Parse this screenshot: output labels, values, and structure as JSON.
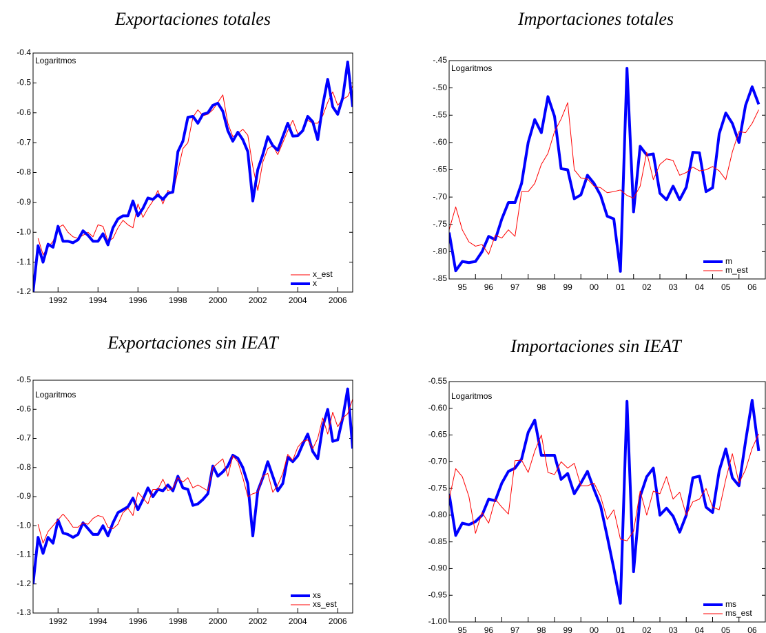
{
  "chart_data": [
    {
      "type": "line",
      "title": "Exportaciones totales",
      "annotation": "Logaritmos",
      "legend": "lower right",
      "x": [
        1990.75,
        1991,
        1991.25,
        1991.5,
        1991.75,
        1992,
        1992.25,
        1992.5,
        1992.75,
        1993,
        1993.25,
        1993.5,
        1993.75,
        1994,
        1994.25,
        1994.5,
        1994.75,
        1995,
        1995.25,
        1995.5,
        1995.75,
        1996,
        1996.25,
        1996.5,
        1996.75,
        1997,
        1997.25,
        1997.5,
        1997.75,
        1998,
        1998.25,
        1998.5,
        1998.75,
        1999,
        1999.25,
        1999.5,
        1999.75,
        2000,
        2000.25,
        2000.5,
        2000.75,
        2001,
        2001.25,
        2001.5,
        2001.75,
        2002,
        2002.25,
        2002.5,
        2002.75,
        2003,
        2003.25,
        2003.5,
        2003.75,
        2004,
        2004.25,
        2004.5,
        2004.75,
        2005,
        2005.25,
        2005.5,
        2005.75,
        2006,
        2006.25,
        2006.5,
        2006.75
      ],
      "series": [
        {
          "name": "x_est",
          "color": "#ff0000",
          "width": 1,
          "values": [
            null,
            -1.02,
            -1.075,
            -1.05,
            -1.03,
            -0.985,
            -0.975,
            -1.0,
            -1.015,
            -1.02,
            -1.01,
            -1.0,
            -1.015,
            -0.975,
            -0.98,
            -1.03,
            -1.02,
            -0.985,
            -0.96,
            -0.975,
            -0.985,
            -0.905,
            -0.95,
            -0.92,
            -0.895,
            -0.86,
            -0.905,
            -0.86,
            -0.87,
            -0.795,
            -0.72,
            -0.7,
            -0.615,
            -0.59,
            -0.61,
            -0.605,
            -0.59,
            -0.565,
            -0.54,
            -0.635,
            -0.68,
            -0.67,
            -0.655,
            -0.675,
            -0.78,
            -0.86,
            -0.765,
            -0.72,
            -0.71,
            -0.74,
            -0.7,
            -0.66,
            -0.625,
            -0.67,
            -0.66,
            -0.625,
            -0.635,
            -0.635,
            -0.61,
            -0.565,
            -0.53,
            -0.575,
            -0.555,
            -0.545,
            -0.51
          ]
        },
        {
          "name": "x",
          "color": "#0000ff",
          "width": 4,
          "values": [
            -1.2,
            -1.045,
            -1.1,
            -1.04,
            -1.05,
            -0.98,
            -1.03,
            -1.03,
            -1.035,
            -1.025,
            -0.995,
            -1.01,
            -1.03,
            -1.03,
            -1.005,
            -1.042,
            -0.985,
            -0.955,
            -0.945,
            -0.945,
            -0.895,
            -0.945,
            -0.92,
            -0.885,
            -0.89,
            -0.875,
            -0.89,
            -0.87,
            -0.865,
            -0.73,
            -0.695,
            -0.615,
            -0.612,
            -0.635,
            -0.605,
            -0.6,
            -0.575,
            -0.568,
            -0.595,
            -0.66,
            -0.695,
            -0.665,
            -0.69,
            -0.73,
            -0.895,
            -0.79,
            -0.74,
            -0.68,
            -0.71,
            -0.725,
            -0.68,
            -0.635,
            -0.678,
            -0.677,
            -0.66,
            -0.612,
            -0.63,
            -0.69,
            -0.575,
            -0.488,
            -0.58,
            -0.605,
            -0.55,
            -0.43,
            -0.58
          ]
        }
      ],
      "xlim": [
        1990.75,
        2006.75
      ],
      "xticks": [
        1992,
        1994,
        1996,
        1998,
        2000,
        2002,
        2004,
        2006
      ],
      "ylim": [
        -1.2,
        -0.4
      ],
      "yticks": [
        -1.2,
        -1.1,
        {
          "value": -1.0,
          "label": "-1.0"
        },
        -0.9,
        -0.8,
        -0.7,
        -0.6,
        -0.5,
        -0.4
      ]
    },
    {
      "type": "line",
      "title": "Importaciones totales",
      "annotation": "Logaritmos",
      "legend": "lower right",
      "x": [
        1995,
        1995.25,
        1995.5,
        1995.75,
        1996,
        1996.25,
        1996.5,
        1996.75,
        1997,
        1997.25,
        1997.5,
        1997.75,
        1998,
        1998.25,
        1998.5,
        1998.75,
        1999,
        1999.25,
        1999.5,
        1999.75,
        2000,
        2000.25,
        2000.5,
        2000.75,
        2001,
        2001.25,
        2001.5,
        2001.75,
        2002,
        2002.25,
        2002.5,
        2002.75,
        2003,
        2003.25,
        2003.5,
        2003.75,
        2004,
        2004.25,
        2004.5,
        2004.75,
        2005,
        2005.25,
        2005.5,
        2005.75,
        2006,
        2006.25,
        2006.5,
        2006.75
      ],
      "series": [
        {
          "name": "m",
          "color": "#0000ff",
          "width": 4,
          "values": [
            -0.765,
            -0.835,
            -0.818,
            -0.82,
            -0.818,
            -0.8,
            -0.772,
            -0.778,
            -0.74,
            -0.71,
            -0.71,
            -0.675,
            -0.6,
            -0.558,
            -0.582,
            -0.516,
            -0.552,
            -0.648,
            -0.65,
            -0.703,
            -0.696,
            -0.66,
            -0.675,
            -0.697,
            -0.735,
            -0.74,
            -0.836,
            -0.464,
            -0.727,
            -0.607,
            -0.623,
            -0.621,
            -0.693,
            -0.705,
            -0.68,
            -0.705,
            -0.682,
            -0.618,
            -0.619,
            -0.69,
            -0.683,
            -0.584,
            -0.546,
            -0.565,
            -0.6,
            -0.532,
            -0.498,
            -0.53
          ]
        },
        {
          "name": "m_est",
          "color": "#ff0000",
          "width": 1,
          "values": [
            -0.76,
            -0.718,
            -0.76,
            -0.782,
            -0.79,
            -0.787,
            -0.805,
            -0.77,
            -0.775,
            -0.76,
            -0.772,
            -0.69,
            -0.69,
            -0.675,
            -0.64,
            -0.62,
            -0.58,
            -0.557,
            -0.527,
            -0.65,
            -0.665,
            -0.667,
            -0.68,
            -0.683,
            -0.692,
            -0.69,
            -0.687,
            -0.697,
            -0.702,
            -0.68,
            -0.618,
            -0.668,
            -0.64,
            -0.63,
            -0.633,
            -0.66,
            -0.655,
            -0.645,
            -0.652,
            -0.65,
            -0.644,
            -0.652,
            -0.668,
            -0.617,
            -0.58,
            -0.582,
            -0.565,
            -0.54
          ]
        }
      ],
      "xlim": [
        1995,
        2007
      ],
      "xticks": [
        {
          "value": 1995,
          "label": "95"
        },
        {
          "value": 1996,
          "label": "96"
        },
        {
          "value": 1997,
          "label": "97"
        },
        {
          "value": 1998,
          "label": "98"
        },
        {
          "value": 1999,
          "label": "99"
        },
        {
          "value": 2000,
          "label": "00"
        },
        {
          "value": 2001,
          "label": "01"
        },
        {
          "value": 2002,
          "label": "02"
        },
        {
          "value": 2003,
          "label": "03"
        },
        {
          "value": 2004,
          "label": "04"
        },
        {
          "value": 2005,
          "label": "05"
        },
        {
          "value": 2006,
          "label": "06"
        }
      ],
      "ylim": [
        -0.85,
        -0.45
      ],
      "yticks": [
        {
          "value": -0.85,
          "label": "-.85"
        },
        {
          "value": -0.8,
          "label": "-.80"
        },
        {
          "value": -0.75,
          "label": "-.75"
        },
        {
          "value": -0.7,
          "label": "-.70"
        },
        {
          "value": -0.65,
          "label": "-.65"
        },
        {
          "value": -0.6,
          "label": "-.60"
        },
        {
          "value": -0.55,
          "label": "-.55"
        },
        {
          "value": -0.5,
          "label": "-.50"
        },
        {
          "value": -0.45,
          "label": "-.45"
        }
      ]
    },
    {
      "type": "line",
      "title": "Exportaciones sin IEAT",
      "annotation": "Logaritmos",
      "legend": "lower right",
      "x": [
        1990.75,
        1991,
        1991.25,
        1991.5,
        1991.75,
        1992,
        1992.25,
        1992.5,
        1992.75,
        1993,
        1993.25,
        1993.5,
        1993.75,
        1994,
        1994.25,
        1994.5,
        1994.75,
        1995,
        1995.25,
        1995.5,
        1995.75,
        1996,
        1996.25,
        1996.5,
        1996.75,
        1997,
        1997.25,
        1997.5,
        1997.75,
        1998,
        1998.25,
        1998.5,
        1998.75,
        1999,
        1999.25,
        1999.5,
        1999.75,
        2000,
        2000.25,
        2000.5,
        2000.75,
        2001,
        2001.25,
        2001.5,
        2001.75,
        2002,
        2002.25,
        2002.5,
        2002.75,
        2003,
        2003.25,
        2003.5,
        2003.75,
        2004,
        2004.25,
        2004.5,
        2004.75,
        2005,
        2005.25,
        2005.5,
        2005.75,
        2006,
        2006.25,
        2006.5,
        2006.75
      ],
      "series": [
        {
          "name": "xs",
          "color": "#0000ff",
          "width": 4,
          "values": [
            -1.2,
            -1.04,
            -1.095,
            -1.04,
            -1.06,
            -0.98,
            -1.025,
            -1.03,
            -1.04,
            -1.03,
            -0.99,
            -1.01,
            -1.03,
            -1.03,
            -1.0,
            -1.035,
            -0.99,
            -0.955,
            -0.945,
            -0.935,
            -0.905,
            -0.945,
            -0.91,
            -0.87,
            -0.9,
            -0.875,
            -0.88,
            -0.86,
            -0.88,
            -0.83,
            -0.87,
            -0.875,
            -0.93,
            -0.925,
            -0.91,
            -0.89,
            -0.795,
            -0.83,
            -0.815,
            -0.795,
            -0.758,
            -0.768,
            -0.8,
            -0.855,
            -1.035,
            -0.88,
            -0.835,
            -0.78,
            -0.83,
            -0.88,
            -0.855,
            -0.765,
            -0.78,
            -0.76,
            -0.72,
            -0.685,
            -0.745,
            -0.77,
            -0.66,
            -0.6,
            -0.71,
            -0.705,
            -0.63,
            -0.53,
            -0.735
          ]
        },
        {
          "name": "xs_est",
          "color": "#ff0000",
          "width": 1,
          "values": [
            null,
            -0.995,
            -1.06,
            -1.02,
            -1.0,
            -0.98,
            -0.96,
            -0.98,
            -1.005,
            -1.005,
            -0.99,
            -0.995,
            -0.975,
            -0.965,
            -0.97,
            -1.005,
            -1.01,
            -0.995,
            -0.955,
            -0.94,
            -0.965,
            -0.885,
            -0.905,
            -0.925,
            -0.875,
            -0.875,
            -0.84,
            -0.88,
            -0.87,
            -0.835,
            -0.85,
            -0.835,
            -0.87,
            -0.86,
            -0.87,
            -0.88,
            -0.8,
            -0.785,
            -0.77,
            -0.83,
            -0.76,
            -0.78,
            -0.835,
            -0.9,
            -0.89,
            -0.885,
            -0.83,
            -0.82,
            -0.885,
            -0.86,
            -0.82,
            -0.755,
            -0.775,
            -0.73,
            -0.71,
            -0.705,
            -0.735,
            -0.7,
            -0.63,
            -0.685,
            -0.61,
            -0.66,
            -0.63,
            -0.615,
            -0.565
          ]
        }
      ],
      "xlim": [
        1990.75,
        2006.75
      ],
      "xticks": [
        1992,
        1994,
        1996,
        1998,
        2000,
        2002,
        2004,
        2006
      ],
      "ylim": [
        -1.3,
        -0.5
      ],
      "yticks": [
        -1.3,
        -1.2,
        -1.1,
        {
          "value": -1.0,
          "label": "-1.0"
        },
        -0.9,
        -0.8,
        -0.7,
        -0.6,
        -0.5
      ]
    },
    {
      "type": "line",
      "title": "Importaciones sin IEAT",
      "annotation": "Logaritmos",
      "legend": "lower right",
      "x": [
        1995,
        1995.25,
        1995.5,
        1995.75,
        1996,
        1996.25,
        1996.5,
        1996.75,
        1997,
        1997.25,
        1997.5,
        1997.75,
        1998,
        1998.25,
        1998.5,
        1998.75,
        1999,
        1999.25,
        1999.5,
        1999.75,
        2000,
        2000.25,
        2000.5,
        2000.75,
        2001,
        2001.25,
        2001.5,
        2001.75,
        2002,
        2002.25,
        2002.5,
        2002.75,
        2003,
        2003.25,
        2003.5,
        2003.75,
        2004,
        2004.25,
        2004.5,
        2004.75,
        2005,
        2005.25,
        2005.5,
        2005.75,
        2006,
        2006.25,
        2006.5,
        2006.75
      ],
      "series": [
        {
          "name": "ms",
          "color": "#0000ff",
          "width": 4,
          "values": [
            -0.76,
            -0.838,
            -0.815,
            -0.818,
            -0.812,
            -0.8,
            -0.77,
            -0.773,
            -0.74,
            -0.718,
            -0.712,
            -0.695,
            -0.645,
            -0.622,
            -0.688,
            -0.688,
            -0.688,
            -0.733,
            -0.722,
            -0.76,
            -0.74,
            -0.718,
            -0.752,
            -0.783,
            -0.84,
            -0.9,
            -0.965,
            -0.587,
            -0.906,
            -0.765,
            -0.728,
            -0.712,
            -0.8,
            -0.787,
            -0.802,
            -0.832,
            -0.8,
            -0.73,
            -0.727,
            -0.785,
            -0.795,
            -0.717,
            -0.676,
            -0.73,
            -0.745,
            -0.662,
            -0.585,
            -0.68
          ]
        },
        {
          "name": "ms_est",
          "color": "#ff0000",
          "width": 1,
          "values": [
            -0.77,
            -0.713,
            -0.728,
            -0.765,
            -0.834,
            -0.795,
            -0.815,
            -0.77,
            -0.785,
            -0.798,
            -0.698,
            -0.697,
            -0.72,
            -0.68,
            -0.65,
            -0.72,
            -0.724,
            -0.7,
            -0.712,
            -0.703,
            -0.745,
            -0.745,
            -0.74,
            -0.765,
            -0.808,
            -0.79,
            -0.845,
            -0.848,
            -0.83,
            -0.755,
            -0.8,
            -0.755,
            -0.76,
            -0.728,
            -0.77,
            -0.757,
            -0.8,
            -0.775,
            -0.77,
            -0.75,
            -0.785,
            -0.79,
            -0.733,
            -0.685,
            -0.74,
            -0.715,
            -0.675,
            -0.648
          ]
        }
      ],
      "xlim": [
        1995,
        2007
      ],
      "xticks": [
        {
          "value": 1995,
          "label": "95"
        },
        {
          "value": 1996,
          "label": "96"
        },
        {
          "value": 1997,
          "label": "97"
        },
        {
          "value": 1998,
          "label": "98"
        },
        {
          "value": 1999,
          "label": "99"
        },
        {
          "value": 2000,
          "label": "00"
        },
        {
          "value": 2001,
          "label": "01"
        },
        {
          "value": 2002,
          "label": "02"
        },
        {
          "value": 2003,
          "label": "03"
        },
        {
          "value": 2004,
          "label": "04"
        },
        {
          "value": 2005,
          "label": "05"
        },
        {
          "value": 2006,
          "label": "06"
        }
      ],
      "ylim": [
        -1.0,
        -0.55
      ],
      "yticks": [
        {
          "value": -1.0,
          "label": "-1.00"
        },
        {
          "value": -0.95,
          "label": "-0.95"
        },
        {
          "value": -0.9,
          "label": "-0.90"
        },
        {
          "value": -0.85,
          "label": "-0.85"
        },
        {
          "value": -0.8,
          "label": "-0.80"
        },
        {
          "value": -0.75,
          "label": "-0.75"
        },
        {
          "value": -0.7,
          "label": "-0.70"
        },
        {
          "value": -0.65,
          "label": "-0.65"
        },
        {
          "value": -0.6,
          "label": "-0.60"
        },
        {
          "value": -0.55,
          "label": "-0.55"
        }
      ]
    }
  ]
}
